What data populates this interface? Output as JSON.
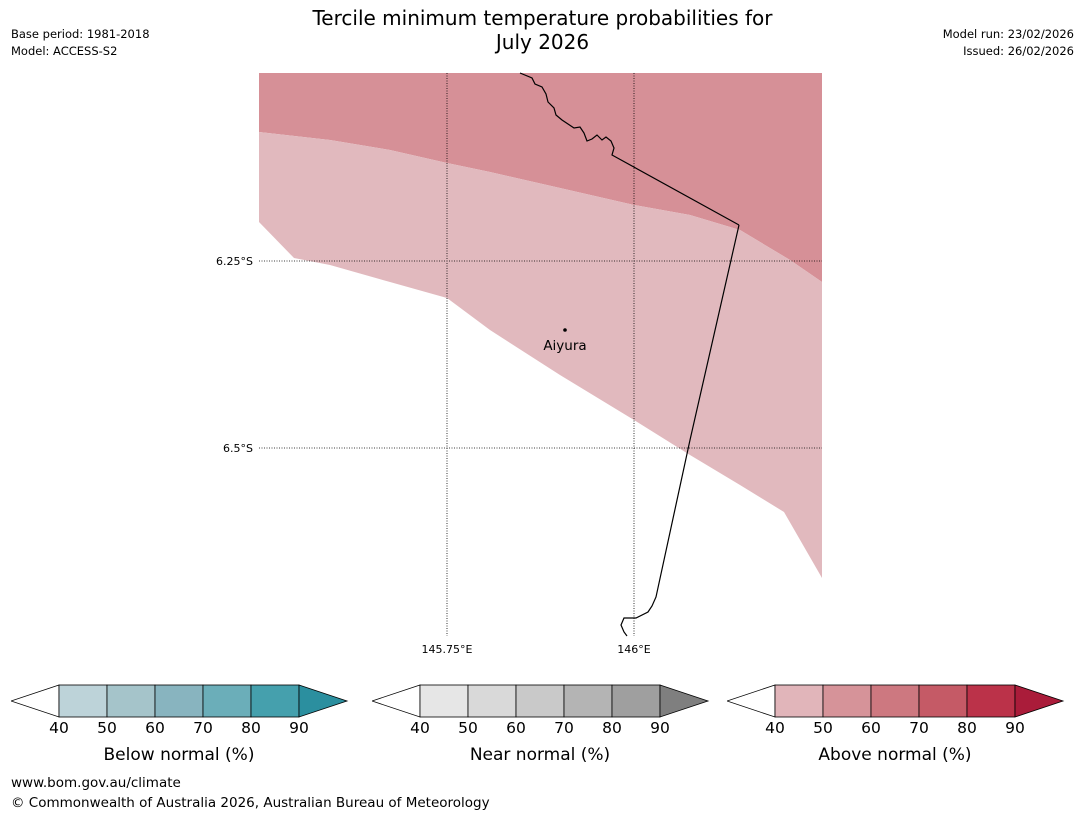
{
  "header": {
    "title_line1": "Tercile minimum temperature probabilities for",
    "title_line2": "July 2026",
    "base_period": "Base period: 1981-2018",
    "model": "Model: ACCESS-S2",
    "model_run": "Model run: 23/02/2026",
    "issued": "Issued: 26/02/2026"
  },
  "map": {
    "lat_labels": [
      "6.25°S",
      "6.5°S"
    ],
    "lon_labels": [
      "145.75°E",
      "146°E"
    ],
    "place": {
      "name": "Aiyura"
    },
    "zones": [
      {
        "category": "Above normal",
        "range": "50-60",
        "color": "#d69097"
      },
      {
        "category": "Above normal",
        "range": "40-50",
        "color": "#e1b9be"
      },
      {
        "category": "No dominant category",
        "color": "#ffffff"
      }
    ]
  },
  "colorbars": [
    {
      "label": "Below normal (%)",
      "ticks": [
        "40",
        "50",
        "60",
        "70",
        "80",
        "90"
      ],
      "colors": [
        "#bdd3d9",
        "#a5c4ca",
        "#88b4bf",
        "#6baeb9",
        "#45a0ad",
        "#2b8f9f"
      ]
    },
    {
      "label": "Near normal (%)",
      "ticks": [
        "40",
        "50",
        "60",
        "70",
        "80",
        "90"
      ],
      "colors": [
        "#e6e6e6",
        "#d9d9d9",
        "#c9c9c9",
        "#b4b4b4",
        "#9f9f9f",
        "#7f7f7f"
      ]
    },
    {
      "label": "Above normal (%)",
      "ticks": [
        "40",
        "50",
        "60",
        "70",
        "80",
        "90"
      ],
      "colors": [
        "#e1b5ba",
        "#d69399",
        "#cd7880",
        "#c55a66",
        "#bb3249",
        "#aa1c3a"
      ]
    }
  ],
  "footer": {
    "url": "www.bom.gov.au/climate",
    "copyright": "© Commonwealth of Australia 2026, Australian Bureau of Meteorology"
  }
}
